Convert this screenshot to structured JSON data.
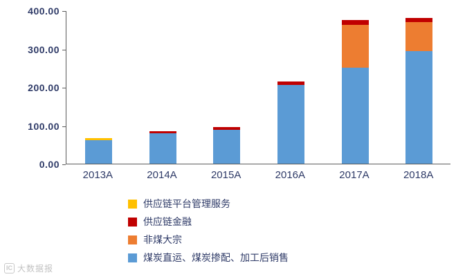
{
  "watermark": {
    "logo": "pick-logo-icon",
    "text": "大数据报"
  },
  "chart_data": {
    "type": "bar",
    "stacked": true,
    "title": "",
    "xlabel": "",
    "ylabel": "",
    "ylim": [
      0,
      400
    ],
    "grid": false,
    "legend_position": "bottom-left",
    "categories": [
      "2013A",
      "2014A",
      "2015A",
      "2016A",
      "2017A",
      "2018A"
    ],
    "series": [
      {
        "name": "煤炭直运、煤炭掺配、加工后销售",
        "color": "#5b9bd5",
        "values": [
          62,
          80,
          88,
          205,
          250,
          293
        ]
      },
      {
        "name": "非煤大宗",
        "color": "#ed7d31",
        "values": [
          0,
          0,
          0,
          0,
          112,
          77
        ]
      },
      {
        "name": "供应链金融",
        "color": "#c00000",
        "values": [
          0,
          4,
          7,
          9,
          13,
          10
        ]
      },
      {
        "name": "供应链平台管理服务",
        "color": "#ffc000",
        "values": [
          5,
          0,
          0,
          0,
          0,
          0
        ]
      }
    ],
    "yticks": [
      {
        "value": 400,
        "label": "400.00"
      },
      {
        "value": 300,
        "label": "300.00"
      },
      {
        "value": 200,
        "label": "200.00"
      },
      {
        "value": 100,
        "label": "100.00"
      },
      {
        "value": 0,
        "label": "0.00"
      }
    ],
    "legend": [
      {
        "label": "供应链平台管理服务",
        "color": "#ffc000"
      },
      {
        "label": "供应链金融",
        "color": "#c00000"
      },
      {
        "label": "非煤大宗",
        "color": "#ed7d31"
      },
      {
        "label": "煤炭直运、煤炭掺配、加工后销售",
        "color": "#5b9bd5"
      }
    ]
  }
}
